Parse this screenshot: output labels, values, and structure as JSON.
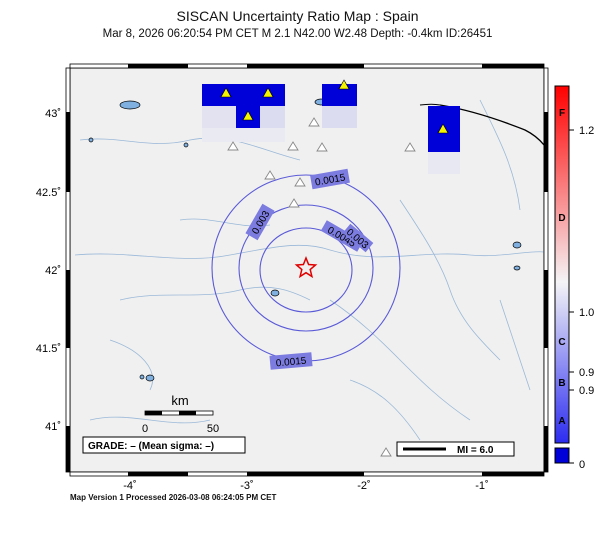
{
  "header": {
    "title": "SISCAN Uncertainty Ratio Map : Spain",
    "event_line": "Mar  8, 2026 06:20:54 PM CET   M 2.1   N42.00 W2.48   Depth: -0.4km   ID:26451"
  },
  "map": {
    "lat_labels": [
      "43˚",
      "42.5˚",
      "42˚",
      "41.5˚",
      "41˚"
    ],
    "lon_labels": [
      "-4˚",
      "-3˚",
      "-2˚",
      "-1˚"
    ],
    "contours": [
      "0.0015",
      "0.003",
      "0.0045",
      "0.003",
      "0.0015"
    ],
    "scale_bar": {
      "title": "km",
      "ticks": [
        "0",
        "50"
      ]
    },
    "grade_box": "GRADE: – (Mean sigma: –)",
    "mi_legend": "MI = 6.0",
    "colors": {
      "high_ratio": "#0000d8",
      "epicenter": "#e00000",
      "contour": "#5a5ad8",
      "land": "#f0f0f0"
    }
  },
  "colorbar": {
    "grade_letters": [
      "F",
      "D",
      "C",
      "B",
      "A"
    ],
    "value_labels": [
      "1.2",
      "1.0",
      "0.9",
      "0.9",
      "0"
    ]
  },
  "footer": "Map Version 1 Processed 2026-03-08 06:24:05 PM CET"
}
